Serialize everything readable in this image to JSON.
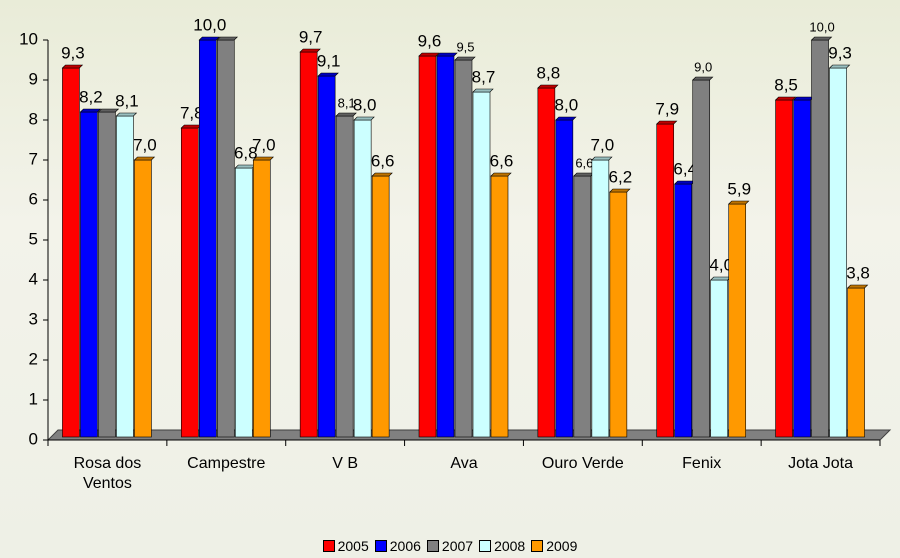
{
  "chart_data": {
    "type": "bar",
    "categories": [
      "Rosa dos Ventos",
      "Campestre",
      "V B",
      "Ava",
      "Ouro Verde",
      "Fenix",
      "Jota Jota"
    ],
    "series": [
      {
        "name": "2005",
        "color": "#ff0000",
        "values": [
          9.3,
          7.8,
          9.7,
          9.6,
          8.8,
          7.9,
          8.5
        ],
        "value_labels": [
          "9,3",
          "7,8",
          "9,7",
          "9,6",
          "8,8",
          "7,9",
          "8,5"
        ]
      },
      {
        "name": "2006",
        "color": "#0000ff",
        "values": [
          8.2,
          10.0,
          9.1,
          9.6,
          8.0,
          6.4,
          8.5
        ],
        "value_labels": [
          "8,2",
          "10,0",
          "9,1",
          null,
          "8,0",
          "6,4",
          null
        ]
      },
      {
        "name": "2007",
        "color": "#808080",
        "values": [
          8.2,
          10.0,
          8.1,
          9.5,
          6.6,
          9.0,
          10.0
        ],
        "value_labels": [
          null,
          null,
          "8,1",
          "9,5",
          "6,6",
          "9,0",
          "10,0"
        ]
      },
      {
        "name": "2008",
        "color": "#ccffff",
        "values": [
          8.1,
          6.8,
          8.0,
          8.7,
          7.0,
          4.0,
          9.3
        ],
        "value_labels": [
          "8,1",
          "6,8",
          "8,0",
          "8,7",
          "7,0",
          "4,0",
          "9,3"
        ]
      },
      {
        "name": "2009",
        "color": "#ff9900",
        "values": [
          7.0,
          7.0,
          6.6,
          6.6,
          6.2,
          5.9,
          3.8
        ],
        "value_labels": [
          "7,0",
          "7,0",
          "6,6",
          "6,6",
          "6,2",
          "5,9",
          "3,8"
        ]
      }
    ],
    "ylim": [
      0,
      10
    ],
    "yticks": [
      0,
      1,
      2,
      3,
      4,
      5,
      6,
      7,
      8,
      9,
      10
    ],
    "legend": "bottom"
  }
}
